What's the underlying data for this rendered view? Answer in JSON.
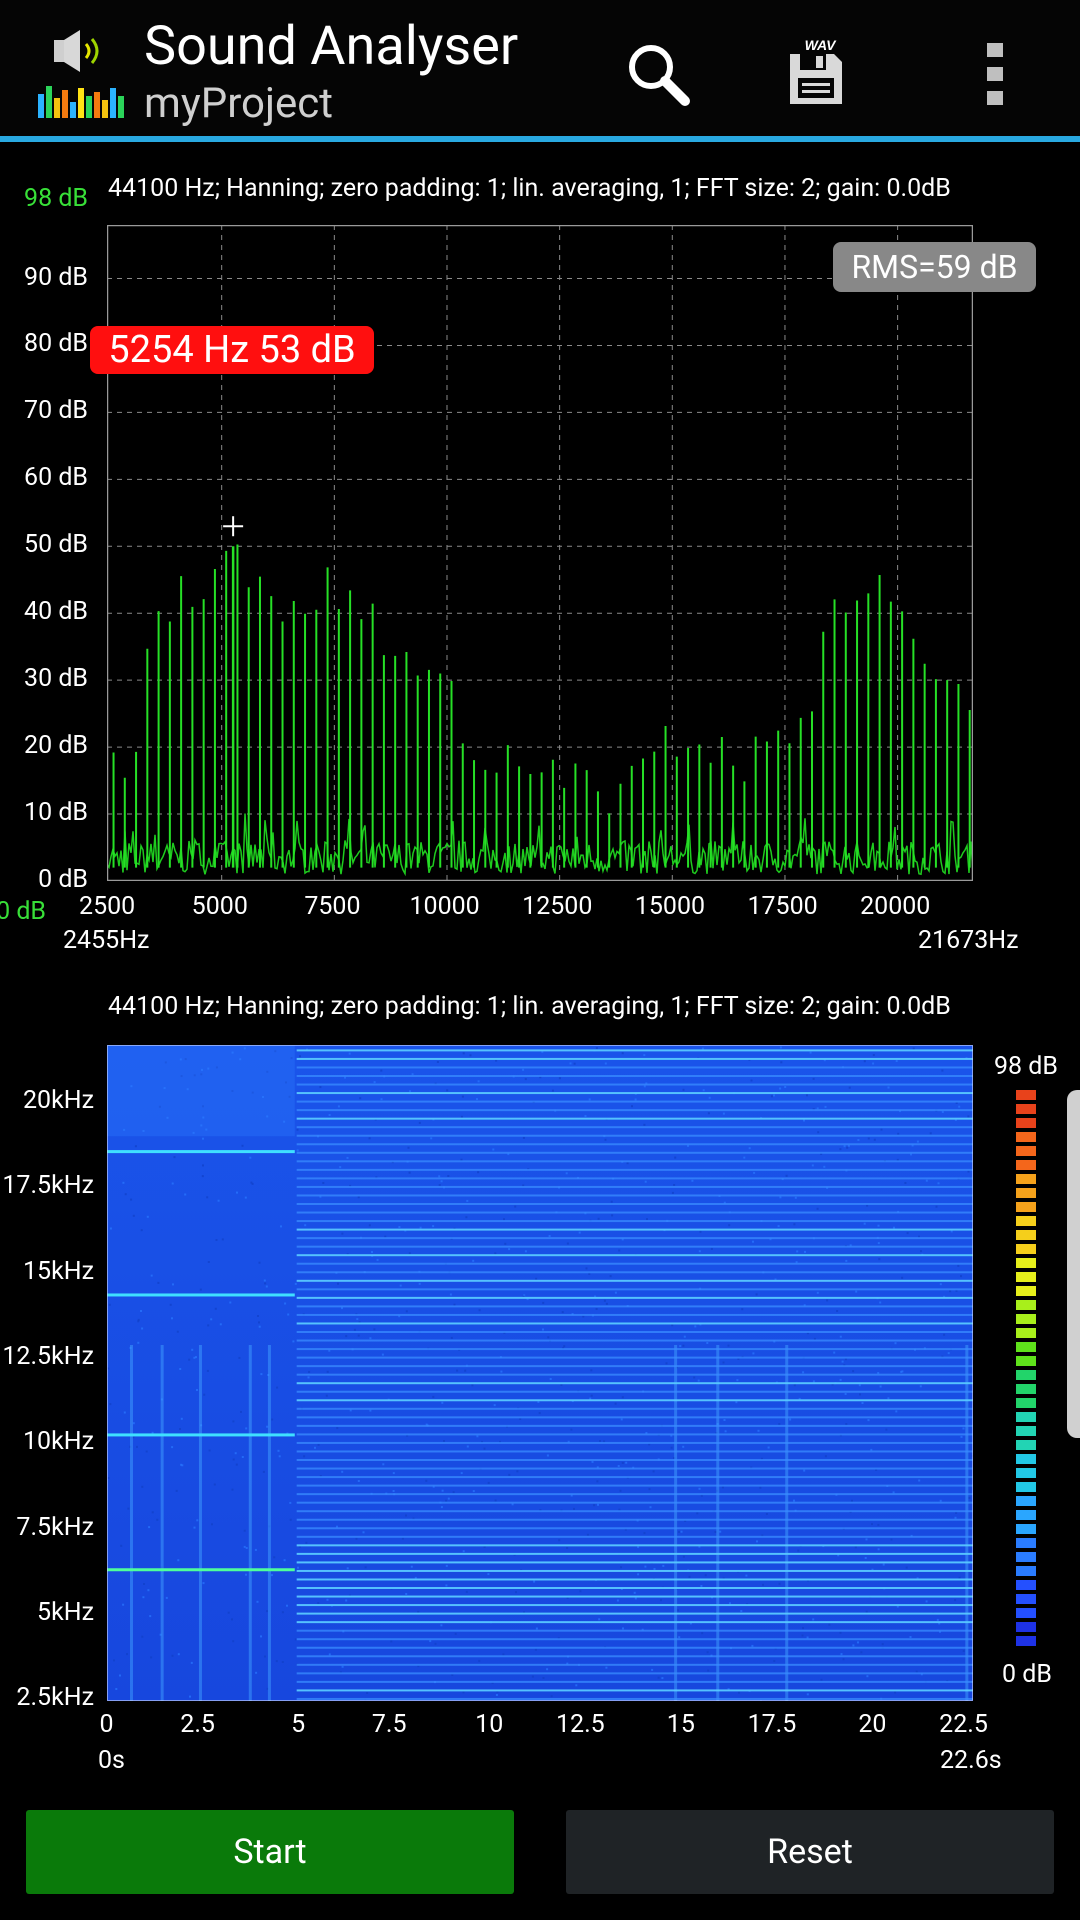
{
  "app": {
    "title": "Sound Analyser",
    "subtitle": "myProject"
  },
  "toolbar": {
    "search_icon": "search-icon",
    "save_icon": "save-wav-icon",
    "save_label": "WAV",
    "more_icon": "more-vertical-icon"
  },
  "spectrum": {
    "info": "44100 Hz; Hanning; zero padding: 1; lin. averaging, 1; FFT size: 2; gain: 0.0dB",
    "rms": "RMS=59 dB",
    "peak": "5254 Hz  53 dB",
    "top_level": "98 dB",
    "bottom_level": "0 dB",
    "y_ticks": [
      "90 dB",
      "80 dB",
      "70 dB",
      "60 dB",
      "50 dB",
      "40 dB",
      "30 dB",
      "20 dB",
      "10 dB",
      "0 dB"
    ],
    "x_ticks": [
      "2500",
      "5000",
      "7500",
      "10000",
      "12500",
      "15000",
      "17500",
      "20000"
    ],
    "range_start": "2455Hz",
    "range_end": "21673Hz"
  },
  "spectrogram": {
    "info": "44100 Hz; Hanning; zero padding: 1; lin. averaging, 1; FFT size: 2; gain: 0.0dB",
    "y_ticks": [
      "20kHz",
      "17.5kHz",
      "15kHz",
      "12.5kHz",
      "10kHz",
      "7.5kHz",
      "5kHz",
      "2.5kHz"
    ],
    "x_ticks": [
      "0",
      "2.5",
      "5",
      "7.5",
      "10",
      "12.5",
      "15",
      "17.5",
      "20",
      "22.5"
    ],
    "time_start": "0s",
    "time_end": "22.6s",
    "scale_max": "98 dB",
    "scale_min": "0 dB"
  },
  "buttons": {
    "start": "Start",
    "reset": "Reset"
  },
  "chart_data": [
    {
      "type": "line",
      "title": "",
      "x": [
        2455,
        3000,
        3400,
        3900,
        4400,
        4900,
        5254,
        5700,
        6200,
        6700,
        7100,
        7600,
        8000,
        8600,
        9100,
        9600,
        10000,
        10500,
        11000,
        11600,
        12100,
        12600,
        13000,
        13600,
        14100,
        14600,
        15000,
        15600,
        16100,
        16600,
        17100,
        17600,
        18100,
        18600,
        19000,
        19500,
        19900,
        20400,
        20900,
        21400,
        21673
      ],
      "values": [
        20,
        18,
        42,
        45,
        47,
        50,
        53,
        47,
        44,
        42,
        47,
        47,
        44,
        40,
        36,
        34,
        35,
        24,
        23,
        19,
        20,
        18,
        20,
        16,
        18,
        21,
        25,
        25,
        22,
        21,
        24,
        26,
        32,
        43,
        48,
        47,
        45,
        41,
        31,
        30,
        28
      ],
      "xlabel": "",
      "ylabel": "",
      "xlim": [
        2455,
        21673
      ],
      "ylim": [
        0,
        98
      ],
      "grid": true,
      "series_color": "#26e026"
    },
    {
      "type": "heatmap",
      "title": "",
      "xlabel": "",
      "ylabel": "",
      "xlim": [
        0,
        22.6
      ],
      "ylim": [
        2455,
        21673
      ],
      "zlim": [
        0,
        98
      ],
      "lines_before_5s_hz": [
        6300,
        10250,
        14350,
        18550
      ],
      "harmonic_spacing_after_5s_hz": 250
    }
  ]
}
